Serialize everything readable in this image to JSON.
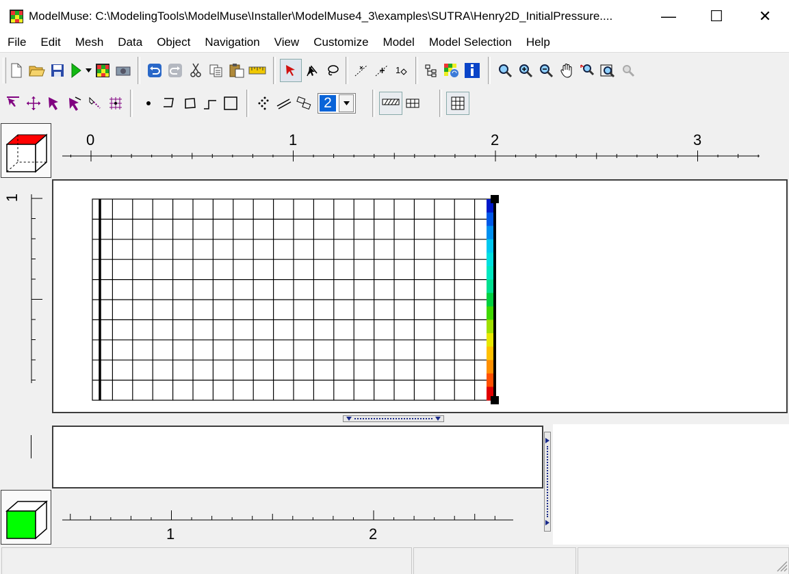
{
  "window": {
    "title": "ModelMuse: C:\\ModelingTools\\ModelMuse\\Installer\\ModelMuse4_3\\examples\\SUTRA\\Henry2D_InitialPressure....",
    "minimize": "—",
    "maximize": "☐",
    "close": "✕"
  },
  "menu": [
    "File",
    "Edit",
    "Mesh",
    "Data",
    "Object",
    "Navigation",
    "View",
    "Customize",
    "Model",
    "Model Selection",
    "Help"
  ],
  "toolbar": {
    "layer_value": "2"
  },
  "top_ruler": {
    "labels": [
      "0",
      "1",
      "2",
      "3"
    ]
  },
  "side_ruler": {
    "labels": [
      "1"
    ]
  },
  "bottom_ruler": {
    "labels": [
      "1",
      "2"
    ]
  },
  "colors": {
    "background": "#f0f0f0",
    "view3d_top": "#ff0000",
    "view3d_front": "#00ff00",
    "selection_red": "#d01010",
    "selection_purple": "#800080"
  },
  "mesh": {
    "columns": 20,
    "rows": 10
  }
}
